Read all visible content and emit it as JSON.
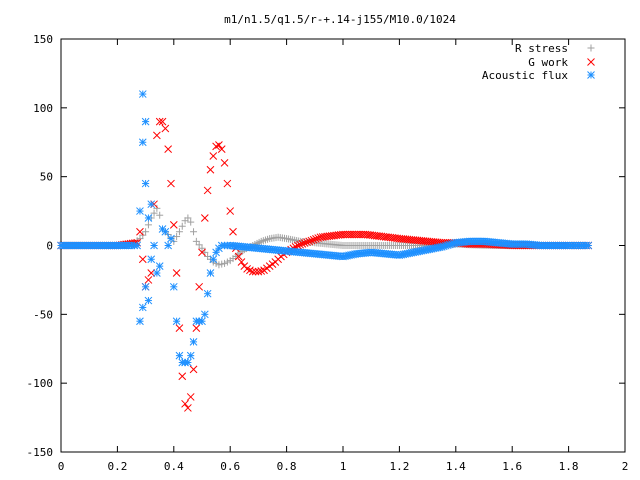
{
  "chart_data": {
    "type": "scatter",
    "title": "m1/n1.5/q1.5/r-+.14-j155/M10.0/1024",
    "xlabel": "",
    "ylabel": "",
    "xlim": [
      0,
      2
    ],
    "ylim": [
      -150,
      150
    ],
    "xticks": [
      "0",
      "0.2",
      "0.4",
      "0.6",
      "0.8",
      "1",
      "1.2",
      "1.4",
      "1.6",
      "1.8",
      "2"
    ],
    "yticks": [
      "150",
      "100",
      "50",
      "0",
      "-50",
      "-100",
      "-150"
    ],
    "xtick_values": [
      0,
      0.2,
      0.4,
      0.6,
      0.8,
      1.0,
      1.2,
      1.4,
      1.6,
      1.8,
      2.0
    ],
    "ytick_values": [
      150,
      100,
      50,
      0,
      -50,
      -100,
      -150
    ],
    "grid": false,
    "legend_position": "top-right",
    "series": [
      {
        "name": "R stress",
        "marker": "plus",
        "color": "#a0a0a0",
        "x": [
          0.0,
          0.1,
          0.2,
          0.26,
          0.28,
          0.3,
          0.32,
          0.34,
          0.35,
          0.36,
          0.38,
          0.4,
          0.42,
          0.44,
          0.45,
          0.46,
          0.47,
          0.48,
          0.5,
          0.52,
          0.54,
          0.56,
          0.58,
          0.6,
          0.62,
          0.65,
          0.68,
          0.71,
          0.74,
          0.77,
          0.8,
          0.85,
          0.9,
          0.95,
          1.0,
          1.1,
          1.2,
          1.3,
          1.4,
          1.5,
          1.6,
          1.7,
          1.8,
          1.87
        ],
        "y": [
          0,
          0,
          0,
          2,
          5,
          10,
          20,
          27,
          22,
          12,
          8,
          3,
          10,
          18,
          20,
          17,
          10,
          3,
          -2,
          -8,
          -12,
          -14,
          -13,
          -11,
          -8,
          -3,
          0,
          3,
          5,
          6,
          5,
          3,
          2,
          1,
          0,
          0,
          0,
          0,
          1,
          0,
          0,
          0,
          0,
          0
        ]
      },
      {
        "name": "G work",
        "marker": "cross",
        "color": "#ff0000",
        "x": [
          0.0,
          0.1,
          0.2,
          0.27,
          0.28,
          0.3,
          0.32,
          0.33,
          0.34,
          0.35,
          0.36,
          0.37,
          0.38,
          0.39,
          0.4,
          0.41,
          0.42,
          0.43,
          0.44,
          0.45,
          0.46,
          0.47,
          0.48,
          0.49,
          0.5,
          0.51,
          0.52,
          0.53,
          0.54,
          0.55,
          0.56,
          0.57,
          0.58,
          0.59,
          0.6,
          0.61,
          0.62,
          0.63,
          0.64,
          0.65,
          0.66,
          0.68,
          0.7,
          0.72,
          0.74,
          0.76,
          0.78,
          0.8,
          0.84,
          0.88,
          0.92,
          0.96,
          1.0,
          1.04,
          1.08,
          1.12,
          1.16,
          1.2,
          1.25,
          1.3,
          1.35,
          1.4,
          1.45,
          1.5,
          1.6,
          1.7,
          1.8,
          1.87
        ],
        "y": [
          0,
          0,
          0,
          2,
          10,
          -30,
          -20,
          30,
          80,
          90,
          90,
          85,
          70,
          45,
          15,
          -20,
          -60,
          -95,
          -115,
          -118,
          -110,
          -90,
          -60,
          -30,
          -5,
          20,
          40,
          55,
          65,
          72,
          73,
          70,
          60,
          45,
          25,
          10,
          -2,
          -8,
          -12,
          -15,
          -17,
          -19,
          -19,
          -18,
          -15,
          -12,
          -8,
          -5,
          0,
          3,
          6,
          7,
          8,
          8,
          8,
          7,
          6,
          5,
          4,
          3,
          2,
          2,
          1,
          1,
          0,
          0,
          0,
          0
        ]
      },
      {
        "name": "Acoustic flux",
        "marker": "star",
        "color": "#1e90ff",
        "x": [
          0.0,
          0.05,
          0.1,
          0.15,
          0.2,
          0.25,
          0.27,
          0.28,
          0.28,
          0.29,
          0.29,
          0.29,
          0.3,
          0.3,
          0.3,
          0.31,
          0.31,
          0.32,
          0.32,
          0.33,
          0.34,
          0.35,
          0.36,
          0.37,
          0.38,
          0.39,
          0.4,
          0.41,
          0.42,
          0.43,
          0.44,
          0.45,
          0.46,
          0.47,
          0.48,
          0.49,
          0.5,
          0.51,
          0.52,
          0.53,
          0.54,
          0.55,
          0.56,
          0.57,
          0.58,
          0.6,
          0.65,
          0.7,
          0.75,
          0.8,
          0.85,
          0.9,
          0.95,
          1.0,
          1.05,
          1.1,
          1.15,
          1.2,
          1.25,
          1.3,
          1.35,
          1.4,
          1.45,
          1.5,
          1.55,
          1.6,
          1.65,
          1.7,
          1.75,
          1.8,
          1.87
        ],
        "y": [
          0,
          0,
          0,
          0,
          0,
          0,
          0,
          25,
          -55,
          110,
          75,
          -45,
          90,
          -30,
          45,
          20,
          -40,
          30,
          -10,
          0,
          -20,
          -15,
          12,
          10,
          0,
          5,
          -30,
          -55,
          -80,
          -85,
          -85,
          -85,
          -80,
          -70,
          -55,
          -55,
          -55,
          -50,
          -35,
          -20,
          -10,
          -5,
          -2,
          0,
          0,
          0,
          -1,
          -2,
          -3,
          -4,
          -5,
          -6,
          -7,
          -8,
          -6,
          -5,
          -6,
          -7,
          -5,
          -3,
          -1,
          2,
          3,
          3,
          2,
          1,
          1,
          0,
          0,
          0,
          0
        ]
      }
    ]
  }
}
